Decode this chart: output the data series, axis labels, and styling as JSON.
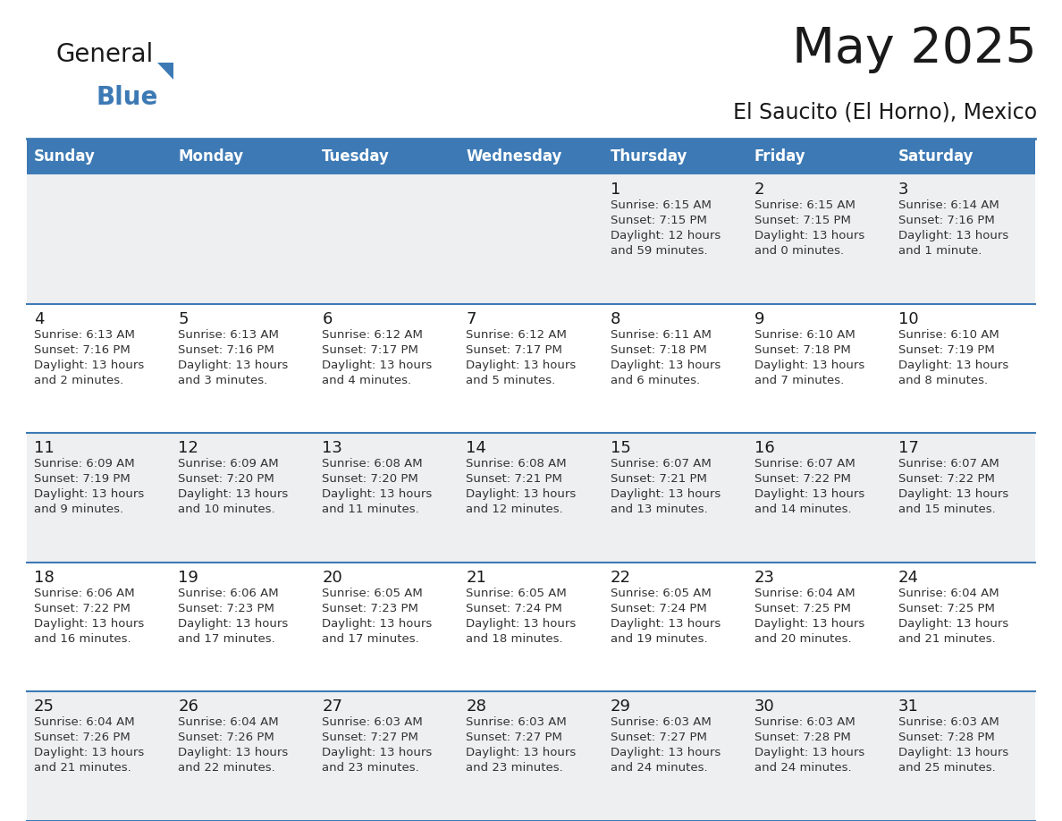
{
  "title": "May 2025",
  "subtitle": "El Saucito (El Horno), Mexico",
  "days_of_week": [
    "Sunday",
    "Monday",
    "Tuesday",
    "Wednesday",
    "Thursday",
    "Friday",
    "Saturday"
  ],
  "header_bg": "#3d7ab5",
  "header_text": "#ffffff",
  "row_bg_odd": "#eeeff0",
  "row_bg_even": "#ffffff",
  "border_color": "#3d7ab5",
  "calendar_data": [
    [
      {
        "day": "",
        "sunrise": "",
        "sunset": "",
        "daylight_line1": "",
        "daylight_line2": ""
      },
      {
        "day": "",
        "sunrise": "",
        "sunset": "",
        "daylight_line1": "",
        "daylight_line2": ""
      },
      {
        "day": "",
        "sunrise": "",
        "sunset": "",
        "daylight_line1": "",
        "daylight_line2": ""
      },
      {
        "day": "",
        "sunrise": "",
        "sunset": "",
        "daylight_line1": "",
        "daylight_line2": ""
      },
      {
        "day": "1",
        "sunrise": "6:15 AM",
        "sunset": "7:15 PM",
        "daylight_line1": "Daylight: 12 hours",
        "daylight_line2": "and 59 minutes."
      },
      {
        "day": "2",
        "sunrise": "6:15 AM",
        "sunset": "7:15 PM",
        "daylight_line1": "Daylight: 13 hours",
        "daylight_line2": "and 0 minutes."
      },
      {
        "day": "3",
        "sunrise": "6:14 AM",
        "sunset": "7:16 PM",
        "daylight_line1": "Daylight: 13 hours",
        "daylight_line2": "and 1 minute."
      }
    ],
    [
      {
        "day": "4",
        "sunrise": "6:13 AM",
        "sunset": "7:16 PM",
        "daylight_line1": "Daylight: 13 hours",
        "daylight_line2": "and 2 minutes."
      },
      {
        "day": "5",
        "sunrise": "6:13 AM",
        "sunset": "7:16 PM",
        "daylight_line1": "Daylight: 13 hours",
        "daylight_line2": "and 3 minutes."
      },
      {
        "day": "6",
        "sunrise": "6:12 AM",
        "sunset": "7:17 PM",
        "daylight_line1": "Daylight: 13 hours",
        "daylight_line2": "and 4 minutes."
      },
      {
        "day": "7",
        "sunrise": "6:12 AM",
        "sunset": "7:17 PM",
        "daylight_line1": "Daylight: 13 hours",
        "daylight_line2": "and 5 minutes."
      },
      {
        "day": "8",
        "sunrise": "6:11 AM",
        "sunset": "7:18 PM",
        "daylight_line1": "Daylight: 13 hours",
        "daylight_line2": "and 6 minutes."
      },
      {
        "day": "9",
        "sunrise": "6:10 AM",
        "sunset": "7:18 PM",
        "daylight_line1": "Daylight: 13 hours",
        "daylight_line2": "and 7 minutes."
      },
      {
        "day": "10",
        "sunrise": "6:10 AM",
        "sunset": "7:19 PM",
        "daylight_line1": "Daylight: 13 hours",
        "daylight_line2": "and 8 minutes."
      }
    ],
    [
      {
        "day": "11",
        "sunrise": "6:09 AM",
        "sunset": "7:19 PM",
        "daylight_line1": "Daylight: 13 hours",
        "daylight_line2": "and 9 minutes."
      },
      {
        "day": "12",
        "sunrise": "6:09 AM",
        "sunset": "7:20 PM",
        "daylight_line1": "Daylight: 13 hours",
        "daylight_line2": "and 10 minutes."
      },
      {
        "day": "13",
        "sunrise": "6:08 AM",
        "sunset": "7:20 PM",
        "daylight_line1": "Daylight: 13 hours",
        "daylight_line2": "and 11 minutes."
      },
      {
        "day": "14",
        "sunrise": "6:08 AM",
        "sunset": "7:21 PM",
        "daylight_line1": "Daylight: 13 hours",
        "daylight_line2": "and 12 minutes."
      },
      {
        "day": "15",
        "sunrise": "6:07 AM",
        "sunset": "7:21 PM",
        "daylight_line1": "Daylight: 13 hours",
        "daylight_line2": "and 13 minutes."
      },
      {
        "day": "16",
        "sunrise": "6:07 AM",
        "sunset": "7:22 PM",
        "daylight_line1": "Daylight: 13 hours",
        "daylight_line2": "and 14 minutes."
      },
      {
        "day": "17",
        "sunrise": "6:07 AM",
        "sunset": "7:22 PM",
        "daylight_line1": "Daylight: 13 hours",
        "daylight_line2": "and 15 minutes."
      }
    ],
    [
      {
        "day": "18",
        "sunrise": "6:06 AM",
        "sunset": "7:22 PM",
        "daylight_line1": "Daylight: 13 hours",
        "daylight_line2": "and 16 minutes."
      },
      {
        "day": "19",
        "sunrise": "6:06 AM",
        "sunset": "7:23 PM",
        "daylight_line1": "Daylight: 13 hours",
        "daylight_line2": "and 17 minutes."
      },
      {
        "day": "20",
        "sunrise": "6:05 AM",
        "sunset": "7:23 PM",
        "daylight_line1": "Daylight: 13 hours",
        "daylight_line2": "and 17 minutes."
      },
      {
        "day": "21",
        "sunrise": "6:05 AM",
        "sunset": "7:24 PM",
        "daylight_line1": "Daylight: 13 hours",
        "daylight_line2": "and 18 minutes."
      },
      {
        "day": "22",
        "sunrise": "6:05 AM",
        "sunset": "7:24 PM",
        "daylight_line1": "Daylight: 13 hours",
        "daylight_line2": "and 19 minutes."
      },
      {
        "day": "23",
        "sunrise": "6:04 AM",
        "sunset": "7:25 PM",
        "daylight_line1": "Daylight: 13 hours",
        "daylight_line2": "and 20 minutes."
      },
      {
        "day": "24",
        "sunrise": "6:04 AM",
        "sunset": "7:25 PM",
        "daylight_line1": "Daylight: 13 hours",
        "daylight_line2": "and 21 minutes."
      }
    ],
    [
      {
        "day": "25",
        "sunrise": "6:04 AM",
        "sunset": "7:26 PM",
        "daylight_line1": "Daylight: 13 hours",
        "daylight_line2": "and 21 minutes."
      },
      {
        "day": "26",
        "sunrise": "6:04 AM",
        "sunset": "7:26 PM",
        "daylight_line1": "Daylight: 13 hours",
        "daylight_line2": "and 22 minutes."
      },
      {
        "day": "27",
        "sunrise": "6:03 AM",
        "sunset": "7:27 PM",
        "daylight_line1": "Daylight: 13 hours",
        "daylight_line2": "and 23 minutes."
      },
      {
        "day": "28",
        "sunrise": "6:03 AM",
        "sunset": "7:27 PM",
        "daylight_line1": "Daylight: 13 hours",
        "daylight_line2": "and 23 minutes."
      },
      {
        "day": "29",
        "sunrise": "6:03 AM",
        "sunset": "7:27 PM",
        "daylight_line1": "Daylight: 13 hours",
        "daylight_line2": "and 24 minutes."
      },
      {
        "day": "30",
        "sunrise": "6:03 AM",
        "sunset": "7:28 PM",
        "daylight_line1": "Daylight: 13 hours",
        "daylight_line2": "and 24 minutes."
      },
      {
        "day": "31",
        "sunrise": "6:03 AM",
        "sunset": "7:28 PM",
        "daylight_line1": "Daylight: 13 hours",
        "daylight_line2": "and 25 minutes."
      }
    ]
  ]
}
